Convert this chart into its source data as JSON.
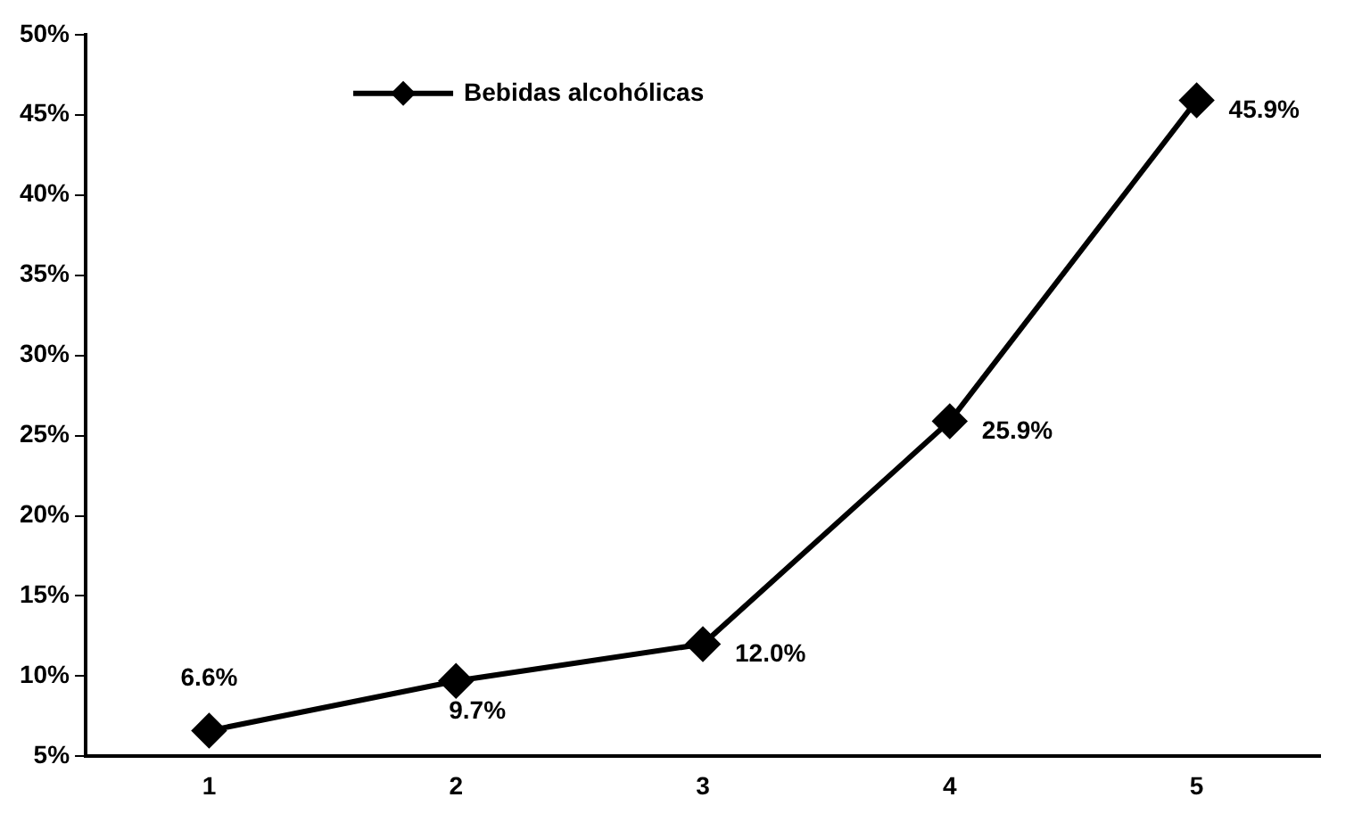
{
  "chart_data": {
    "type": "line",
    "categories": [
      "1",
      "2",
      "3",
      "4",
      "5"
    ],
    "series": [
      {
        "name": "Bebidas alcohólicas",
        "color": "#000000",
        "values": [
          6.6,
          9.7,
          12.0,
          25.9,
          45.9
        ],
        "value_labels": [
          "6.6%",
          "9.7%",
          "12.0%",
          "25.9%",
          "45.9%"
        ]
      }
    ],
    "ylim": [
      5,
      50
    ],
    "yticks": [
      {
        "value": 5,
        "label": "5%"
      },
      {
        "value": 10,
        "label": "10%"
      },
      {
        "value": 15,
        "label": "15%"
      },
      {
        "value": 20,
        "label": "20%"
      },
      {
        "value": 25,
        "label": "25%"
      },
      {
        "value": 30,
        "label": "30%"
      },
      {
        "value": 35,
        "label": "35%"
      },
      {
        "value": 40,
        "label": "40%"
      },
      {
        "value": 45,
        "label": "45%"
      },
      {
        "value": 50,
        "label": "50%"
      }
    ],
    "grid": false,
    "legend": "top left",
    "marker": "diamond",
    "line_style": "solid"
  }
}
